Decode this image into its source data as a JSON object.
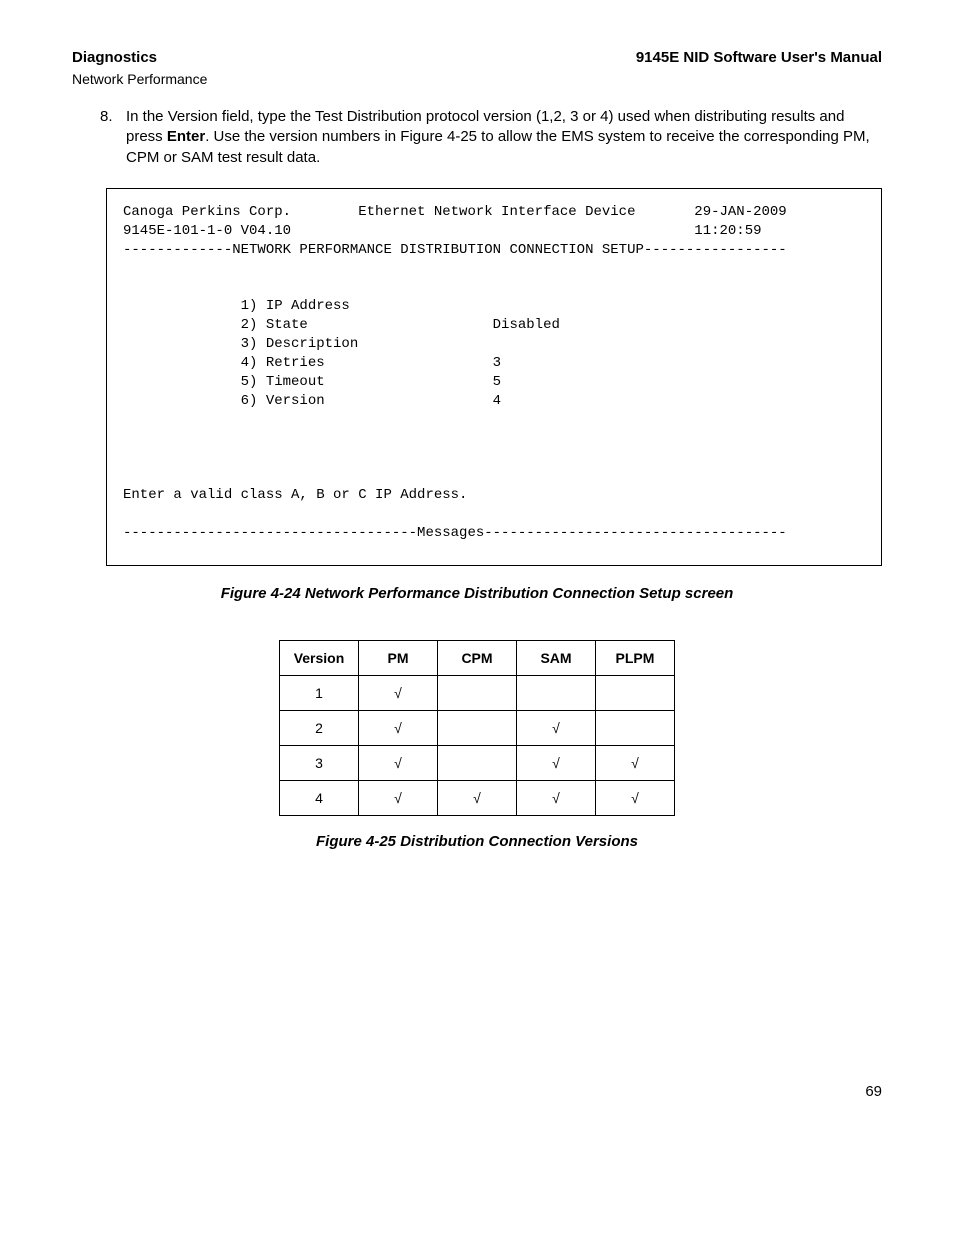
{
  "header": {
    "left": "Diagnostics",
    "right": "9145E NID Software User's Manual",
    "sub": "Network Performance"
  },
  "step": {
    "number": "8.",
    "text_before_bold": "In the Version field, type  the Test Distribution protocol version (1,2, 3 or 4) used when distributing results and press ",
    "bold": "Enter",
    "text_after_bold": ". Use the version numbers in Figure 4-25  to allow the EMS system to receive the corresponding PM, CPM or SAM test result data."
  },
  "terminal": {
    "corp": "Canoga Perkins Corp.",
    "device": "Ethernet Network Interface Device",
    "date": "29-JAN-2009",
    "model": "9145E-101-1-0 V04.10",
    "time": "11:20:59",
    "title": "NETWORK PERFORMANCE DISTRIBUTION CONNECTION SETUP",
    "items": [
      {
        "n": "1)",
        "label": "IP Address",
        "value": ""
      },
      {
        "n": "2)",
        "label": "State",
        "value": "Disabled"
      },
      {
        "n": "3)",
        "label": "Description",
        "value": ""
      },
      {
        "n": "4)",
        "label": "Retries",
        "value": "3"
      },
      {
        "n": "5)",
        "label": "Timeout",
        "value": "5"
      },
      {
        "n": "6)",
        "label": "Version",
        "value": "4"
      }
    ],
    "prompt": "Enter a valid class A, B or C IP Address.",
    "messages_label": "Messages"
  },
  "captions": {
    "fig24": "Figure 4-24  Network Performance  Distribution Connection Setup screen",
    "fig25": "Figure 4-25  Distribution Connection Versions"
  },
  "table": {
    "columns": [
      "Version",
      "PM",
      "CPM",
      "SAM",
      "PLPM"
    ],
    "check": "√",
    "rows": [
      {
        "version": "1",
        "pm": true,
        "cpm": false,
        "sam": false,
        "plpm": false
      },
      {
        "version": "2",
        "pm": true,
        "cpm": false,
        "sam": true,
        "plpm": false
      },
      {
        "version": "3",
        "pm": true,
        "cpm": false,
        "sam": true,
        "plpm": true
      },
      {
        "version": "4",
        "pm": true,
        "cpm": true,
        "sam": true,
        "plpm": true
      }
    ]
  },
  "page_number": "69"
}
